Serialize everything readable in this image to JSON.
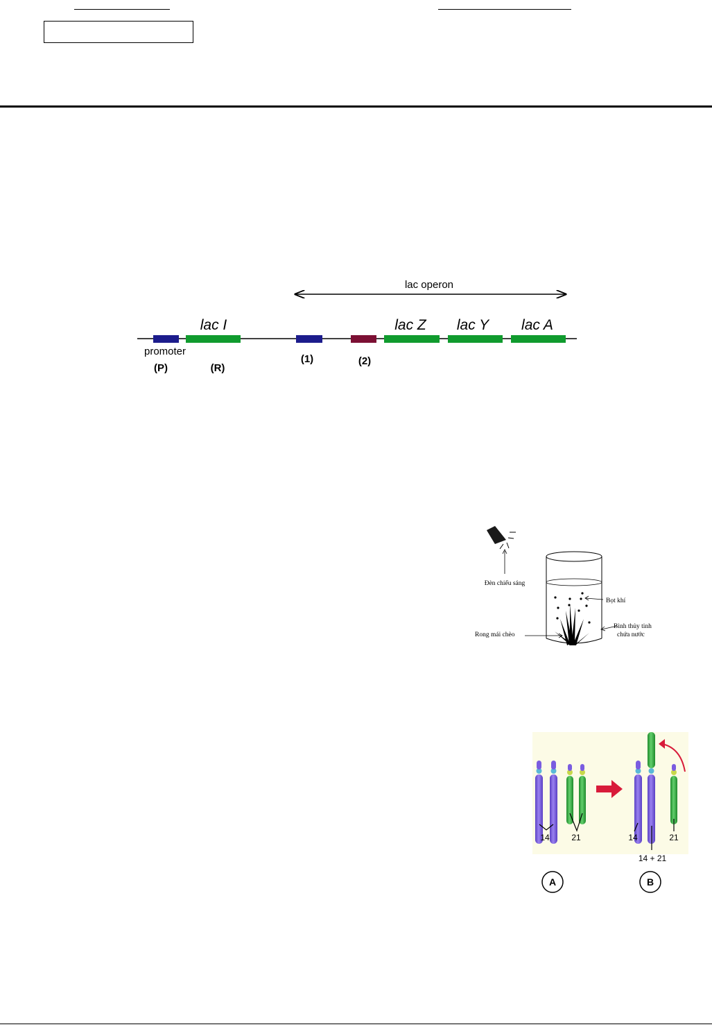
{
  "lac_diagram": {
    "operon_label": "lac operon",
    "gene_labels": [
      "lac I",
      "lac Z",
      "lac Y",
      "lac A"
    ],
    "promoter_label": "promoter",
    "region_labels": [
      "(P)",
      "(R)",
      "(1)",
      "(2)"
    ],
    "colors": {
      "promoter": "#1c1c8c",
      "gene": "#109b2e",
      "operator": "#7c1034"
    }
  },
  "photosynthesis_diagram": {
    "lamp_label": "Đèn chiếu sáng",
    "bubbles_label": "Bọt khí",
    "jar_label_line1": "Bình thủy tinh",
    "jar_label_line2": "chứa nước",
    "plant_label": "Rong mái chèo"
  },
  "chromosome_diagram": {
    "labels_left": [
      "14",
      "21"
    ],
    "labels_right": [
      "14",
      "21"
    ],
    "fusion_label": "14 + 21",
    "panel_a": "A",
    "panel_b": "B",
    "colors": {
      "chr14": "#7a5ce0",
      "chr21": "#2fae3a",
      "arrow": "#d81b3a",
      "background": "#fcfbe6"
    }
  }
}
